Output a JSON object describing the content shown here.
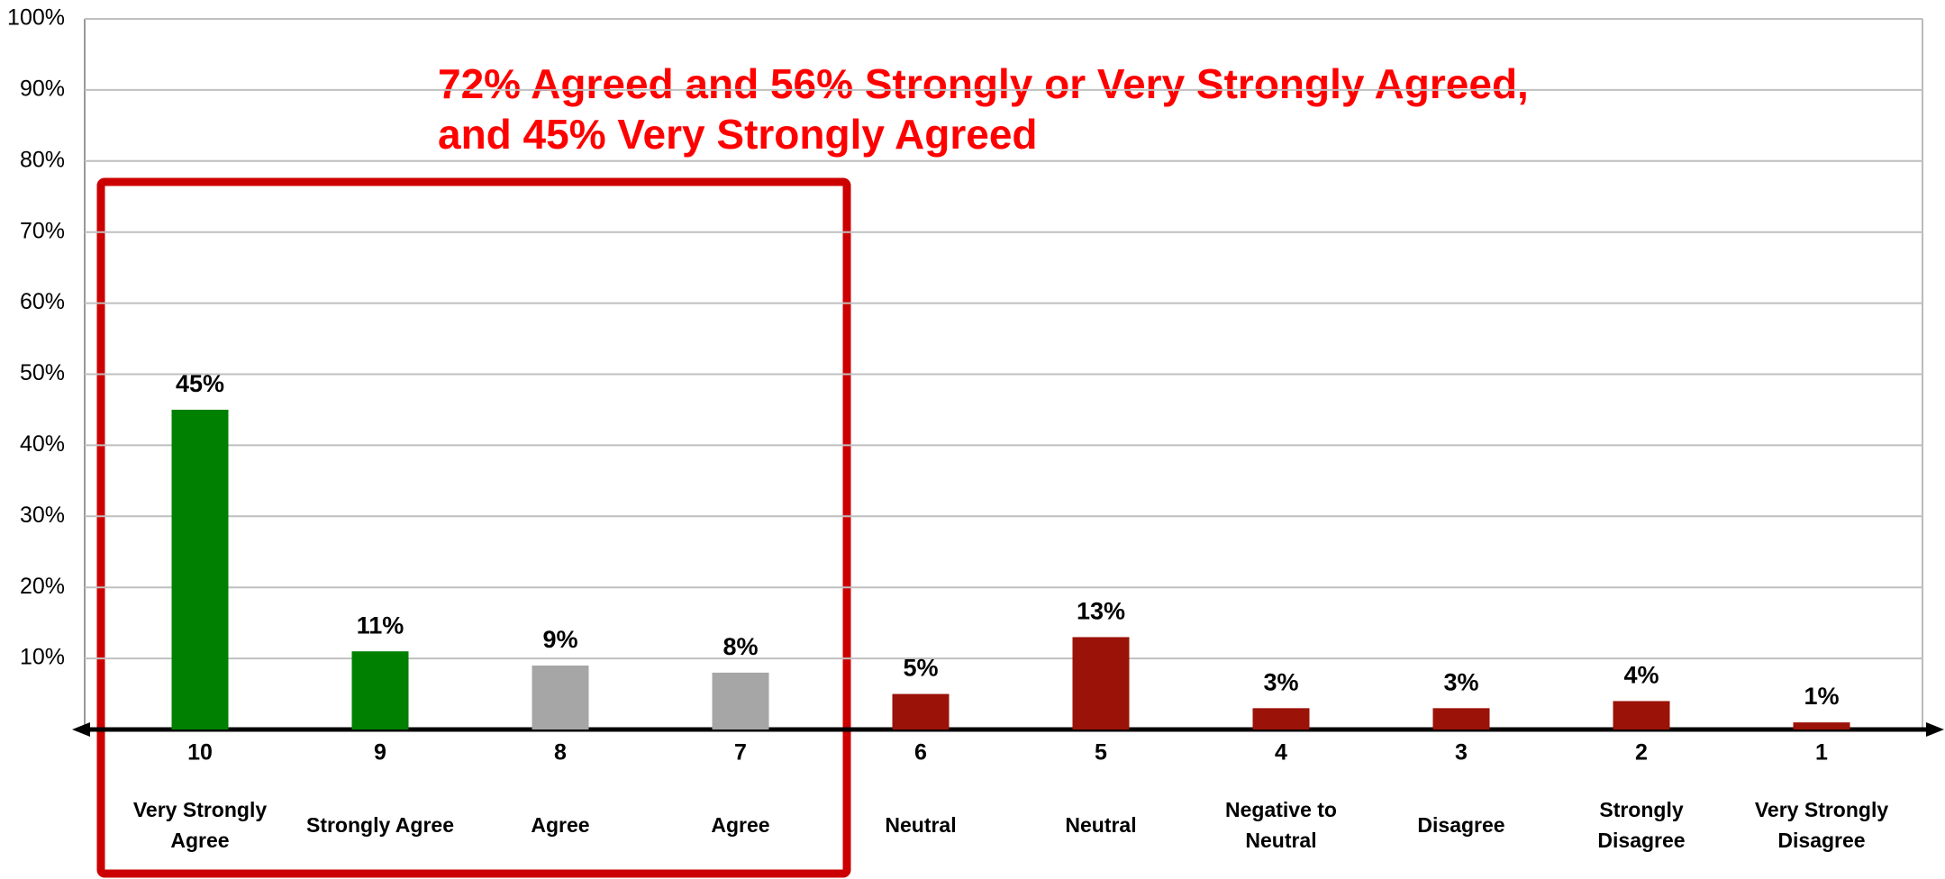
{
  "chart_data": {
    "type": "bar",
    "annotation": [
      "72% Agreed and 56% Strongly or Very Strongly Agreed,",
      "and 45% Very Strongly Agreed"
    ],
    "categories": [
      "10",
      "9",
      "8",
      "7",
      "6",
      "5",
      "4",
      "3",
      "2",
      "1"
    ],
    "category_descriptions": [
      "Very Strongly Agree",
      "Strongly Agree",
      "Agree",
      "Agree",
      "Neutral",
      "Neutral",
      "Negative to Neutral",
      "Disagree",
      "Strongly Disagree",
      "Very Strongly Disagree"
    ],
    "values": [
      45,
      11,
      9,
      8,
      5,
      13,
      3,
      3,
      4,
      1
    ],
    "value_labels": [
      "45%",
      "11%",
      "9%",
      "8%",
      "5%",
      "13%",
      "3%",
      "3%",
      "4%",
      "1%"
    ],
    "colors": [
      "#008000",
      "#008000",
      "#a6a6a6",
      "#a6a6a6",
      "#9b1208",
      "#9b1208",
      "#9b1208",
      "#9b1208",
      "#9b1208",
      "#9b1208"
    ],
    "ylim": [
      0,
      100
    ],
    "yticks": [
      {
        "value": 10,
        "label": "10%"
      },
      {
        "value": 20,
        "label": "20%"
      },
      {
        "value": 30,
        "label": "30%"
      },
      {
        "value": 40,
        "label": "40%"
      },
      {
        "value": 50,
        "label": "50%"
      },
      {
        "value": 60,
        "label": "60%"
      },
      {
        "value": 70,
        "label": "70%"
      },
      {
        "value": 80,
        "label": "80%"
      },
      {
        "value": 90,
        "label": "90%"
      },
      {
        "value": 100,
        "label": "100%"
      }
    ],
    "grid": true
  }
}
